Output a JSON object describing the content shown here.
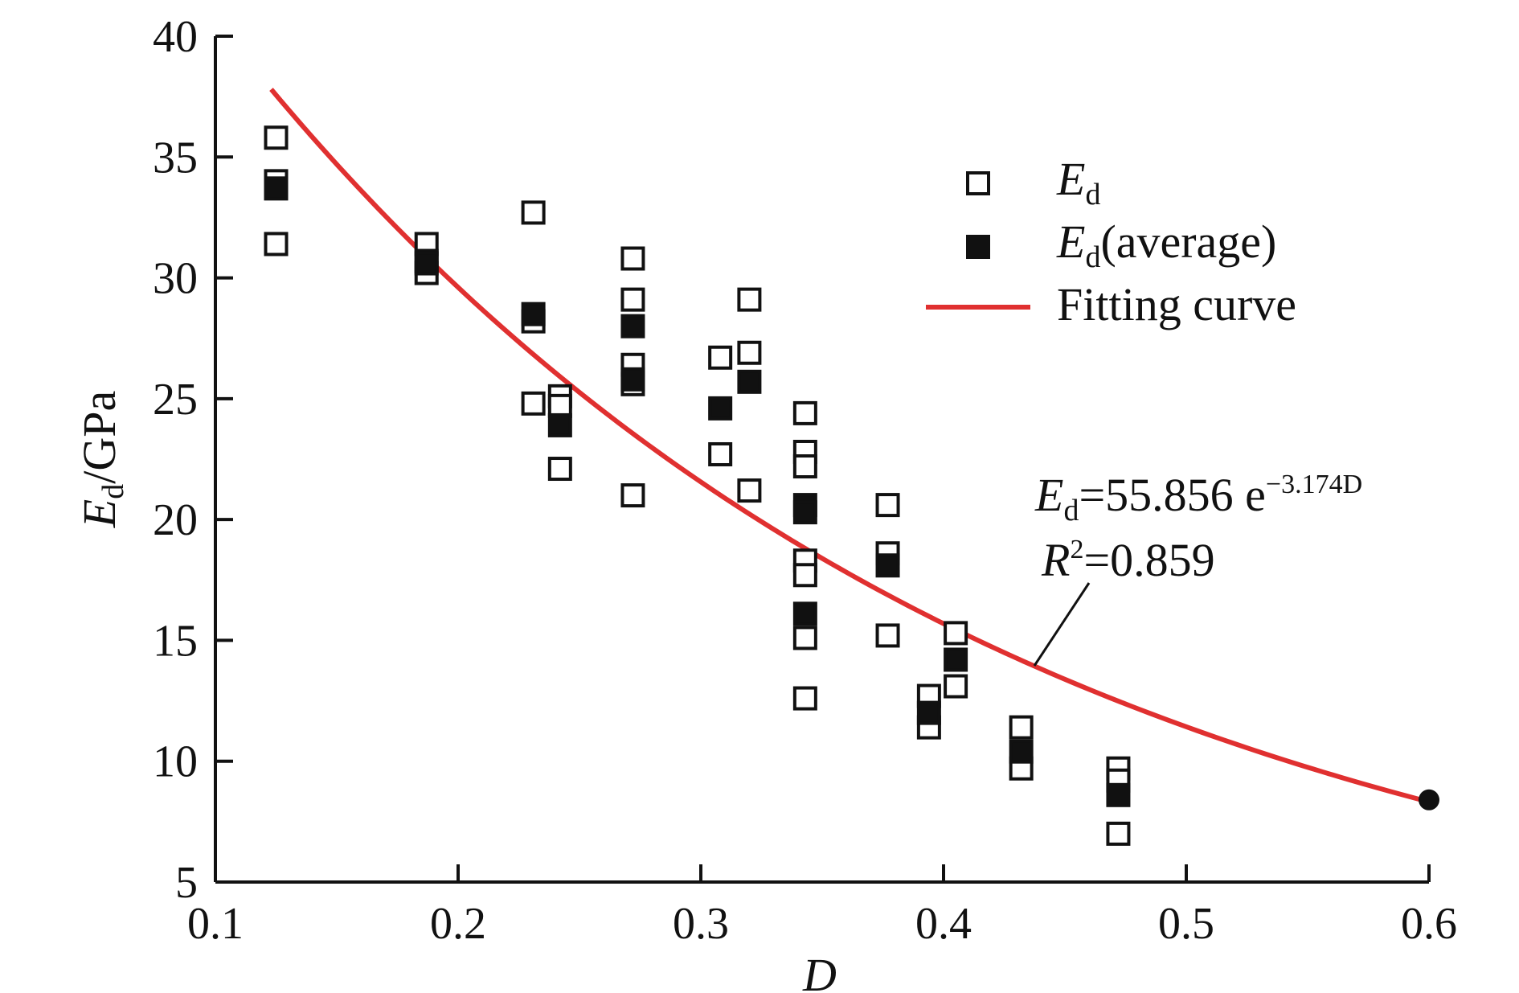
{
  "chart_data": {
    "type": "scatter",
    "x_axis": {
      "label_main": "D",
      "range": [
        0.1,
        0.6
      ],
      "ticks": [
        "0.1",
        "0.2",
        "0.3",
        "0.4",
        "0.5",
        "0.6"
      ]
    },
    "y_axis": {
      "label_main": "E",
      "label_sub": "d",
      "label_unit": "/GPa",
      "range": [
        5,
        40
      ],
      "ticks": [
        "5",
        "10",
        "15",
        "20",
        "25",
        "30",
        "35",
        "40"
      ]
    },
    "legend": {
      "placement": "top-right",
      "items": [
        {
          "main": "E",
          "sub": "d",
          "rest": ""
        },
        {
          "main": "E",
          "sub": "d",
          "rest": "(average)"
        },
        {
          "main": "Fitting curve",
          "sub": "",
          "rest": ""
        }
      ]
    },
    "series": [
      {
        "name": "Ed",
        "marker": "open-square",
        "points": [
          [
            0.125,
            35.8
          ],
          [
            0.125,
            34.0
          ],
          [
            0.125,
            31.4
          ],
          [
            0.187,
            31.4
          ],
          [
            0.187,
            30.7
          ],
          [
            0.187,
            30.2
          ],
          [
            0.231,
            32.7
          ],
          [
            0.231,
            28.2
          ],
          [
            0.231,
            24.8
          ],
          [
            0.242,
            25.1
          ],
          [
            0.242,
            24.7
          ],
          [
            0.242,
            22.1
          ],
          [
            0.272,
            30.8
          ],
          [
            0.272,
            29.1
          ],
          [
            0.272,
            26.4
          ],
          [
            0.272,
            25.6
          ],
          [
            0.272,
            21.0
          ],
          [
            0.308,
            26.7
          ],
          [
            0.308,
            22.7
          ],
          [
            0.32,
            29.1
          ],
          [
            0.32,
            26.9
          ],
          [
            0.32,
            21.2
          ],
          [
            0.343,
            24.4
          ],
          [
            0.343,
            22.8
          ],
          [
            0.343,
            22.2
          ],
          [
            0.343,
            18.3
          ],
          [
            0.343,
            17.7
          ],
          [
            0.343,
            15.1
          ],
          [
            0.343,
            12.6
          ],
          [
            0.377,
            20.6
          ],
          [
            0.377,
            18.6
          ],
          [
            0.377,
            15.2
          ],
          [
            0.394,
            12.7
          ],
          [
            0.394,
            11.4
          ],
          [
            0.405,
            15.3
          ],
          [
            0.405,
            13.1
          ],
          [
            0.432,
            11.4
          ],
          [
            0.432,
            9.7
          ],
          [
            0.472,
            9.7
          ],
          [
            0.472,
            9.2
          ],
          [
            0.472,
            7.0
          ]
        ]
      },
      {
        "name": "Ed (average)",
        "marker": "filled-square",
        "points": [
          [
            0.125,
            33.7
          ],
          [
            0.187,
            30.6
          ],
          [
            0.231,
            28.5
          ],
          [
            0.242,
            23.9
          ],
          [
            0.272,
            28.0
          ],
          [
            0.272,
            25.8
          ],
          [
            0.308,
            24.6
          ],
          [
            0.32,
            25.7
          ],
          [
            0.343,
            20.6
          ],
          [
            0.343,
            20.3
          ],
          [
            0.343,
            16.1
          ],
          [
            0.377,
            18.1
          ],
          [
            0.394,
            12.0
          ],
          [
            0.405,
            14.2
          ],
          [
            0.432,
            10.4
          ],
          [
            0.472,
            8.6
          ]
        ]
      },
      {
        "name": "Fitting curve",
        "type": "line",
        "color": "#e03030",
        "model": {
          "a": 55.856,
          "b": -3.174
        },
        "x_range": [
          0.123,
          0.6
        ],
        "end_marker": {
          "x": 0.6,
          "y": 8.4
        }
      }
    ],
    "annotations": {
      "equation": {
        "main": "E",
        "sub": "d",
        "mid": "=55.856 e",
        "sup": "−3.174D"
      },
      "r2": {
        "main": "R",
        "sup": "2",
        "rest": "=0.859"
      }
    },
    "grid": false
  }
}
